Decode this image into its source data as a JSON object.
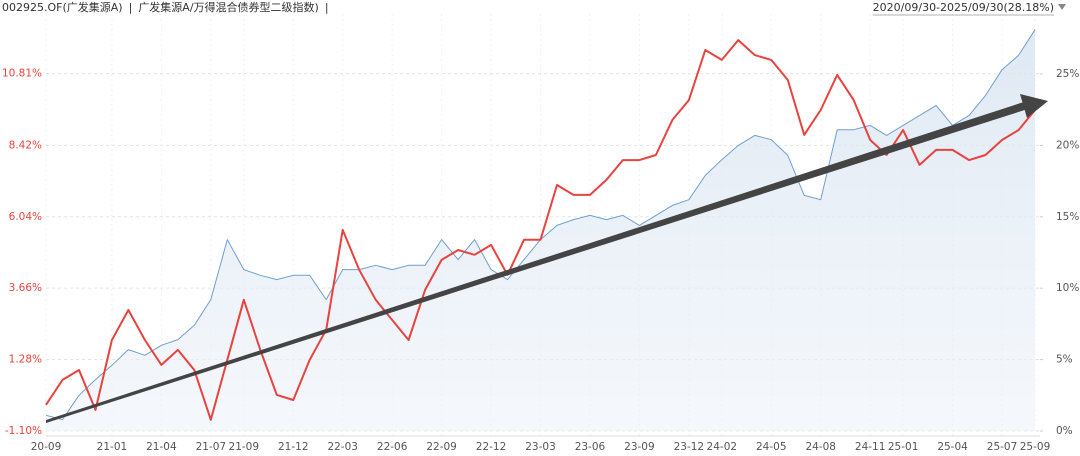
{
  "chart_data": {
    "type": "line",
    "separator": "|",
    "period": "2020/09/30-2025/09/30",
    "brackets": [
      "(",
      ")"
    ],
    "period_return": {
      "value": 28.18,
      "label": "28.18%"
    },
    "x": [
      "20-09",
      "20-10",
      "20-11",
      "20-12",
      "21-01",
      "21-02",
      "21-03",
      "21-04",
      "21-05",
      "21-06",
      "21-07",
      "21-08",
      "21-09",
      "21-10",
      "21-11",
      "21-12",
      "22-01",
      "22-02",
      "22-03",
      "22-04",
      "22-05",
      "22-06",
      "22-07",
      "22-08",
      "22-09",
      "22-10",
      "22-11",
      "22-12",
      "23-01",
      "23-02",
      "23-03",
      "23-04",
      "23-05",
      "23-06",
      "23-07",
      "23-08",
      "23-09",
      "23-10",
      "23-11",
      "23-12",
      "24-01",
      "24-02",
      "24-03",
      "24-04",
      "24-05",
      "24-06",
      "24-07",
      "24-08",
      "24-09",
      "24-10",
      "24-11",
      "24-12",
      "25-01",
      "25-02",
      "25-03",
      "25-04",
      "25-05",
      "25-06",
      "25-07",
      "25-08",
      "25-09"
    ],
    "xticks": [
      "20-09",
      "21-01",
      "21-04",
      "21-07",
      "21-09",
      "21-12",
      "22-03",
      "22-06",
      "22-09",
      "22-12",
      "23-03",
      "23-06",
      "23-09",
      "23-12",
      "24-02",
      "24-05",
      "24-08",
      "24-11",
      "25-01",
      "25-04",
      "25-07",
      "25-09"
    ],
    "series": [
      {
        "name": "002925.OF(广发集源A)",
        "color": "#6f9fcf",
        "area": true,
        "axis": "y2",
        "values": [
          1.1,
          0.8,
          2.5,
          3.6,
          4.6,
          5.7,
          5.3,
          6.0,
          6.4,
          7.4,
          9.2,
          13.4,
          11.3,
          10.9,
          10.6,
          10.9,
          10.9,
          9.2,
          11.3,
          11.3,
          11.6,
          11.3,
          11.6,
          11.6,
          13.4,
          12.0,
          13.4,
          11.3,
          10.6,
          12.0,
          13.4,
          14.4,
          14.8,
          15.1,
          14.8,
          15.1,
          14.4,
          15.1,
          15.8,
          16.2,
          17.9,
          19.0,
          20.0,
          20.7,
          20.4,
          19.3,
          16.5,
          16.2,
          21.1,
          21.1,
          21.4,
          20.7,
          21.4,
          22.1,
          22.8,
          21.4,
          22.1,
          23.5,
          25.3,
          26.3,
          28.1
        ]
      },
      {
        "name": "广发集源A/万得混合债券型二级指数)",
        "color": "#e8433f",
        "area": false,
        "values": [
          -0.23,
          0.6,
          0.93,
          -0.4,
          1.93,
          2.93,
          1.93,
          1.1,
          1.6,
          0.93,
          -0.73,
          1.27,
          3.27,
          1.6,
          0.1,
          -0.07,
          1.27,
          2.27,
          5.6,
          4.27,
          3.27,
          2.6,
          1.93,
          3.6,
          4.6,
          4.93,
          4.77,
          5.1,
          4.1,
          5.27,
          5.27,
          7.1,
          6.77,
          6.77,
          7.27,
          7.93,
          7.93,
          8.1,
          9.27,
          9.93,
          11.6,
          11.27,
          11.93,
          11.43,
          11.27,
          10.6,
          8.77,
          9.6,
          10.77,
          9.93,
          8.6,
          8.1,
          8.93,
          7.77,
          8.27,
          8.27,
          7.93,
          8.1,
          8.6,
          8.93,
          9.6
        ]
      }
    ],
    "ylim": [
      -1.27,
      12.8
    ],
    "yticks": [
      {
        "value": -1.1,
        "label": "-1.10%"
      },
      {
        "value": 1.28,
        "label": "1.28%"
      },
      {
        "value": 3.66,
        "label": "3.66%"
      },
      {
        "value": 6.04,
        "label": "6.04%"
      },
      {
        "value": 8.42,
        "label": "8.42%"
      },
      {
        "value": 10.81,
        "label": "10.81%"
      }
    ],
    "y2lim": [
      -0.35,
      29.2
    ],
    "y2ticks": [
      {
        "value": 0,
        "label": "0%"
      },
      {
        "value": 5,
        "label": "5%"
      },
      {
        "value": 10,
        "label": "10%"
      },
      {
        "value": 15,
        "label": "15%"
      },
      {
        "value": 20,
        "label": "20%"
      },
      {
        "value": 25,
        "label": "25%"
      }
    ],
    "grid": true
  }
}
